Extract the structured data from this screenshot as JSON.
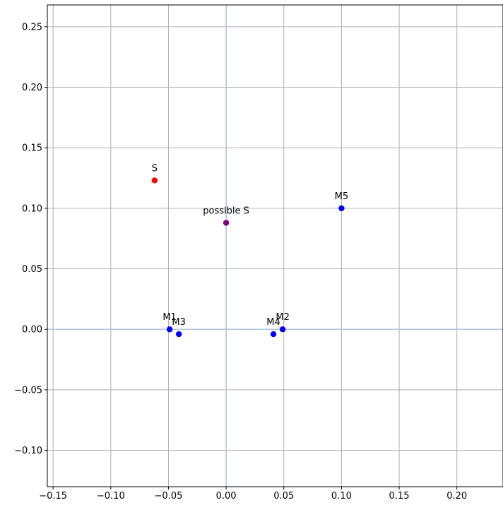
{
  "chart_data": {
    "type": "scatter",
    "title": "",
    "xlabel": "",
    "ylabel": "",
    "xlim": [
      -0.155,
      0.24
    ],
    "ylim": [
      -0.13,
      0.268
    ],
    "x_ticks": [
      -0.15,
      -0.1,
      -0.05,
      0.0,
      0.05,
      0.1,
      0.15,
      0.2
    ],
    "x_tick_labels": [
      "−0.15",
      "−0.10",
      "−0.05",
      "0.00",
      "0.05",
      "0.10",
      "0.15",
      "0.20"
    ],
    "y_ticks": [
      0.25,
      0.2,
      0.15,
      0.1,
      0.05,
      0.0,
      -0.05,
      -0.1
    ],
    "y_tick_labels": [
      "0.25",
      "0.20",
      "0.15",
      "0.10",
      "0.05",
      "0.00",
      "−0.05",
      "−0.10"
    ],
    "grid": true,
    "axis_lines_at_zero": true,
    "points": [
      {
        "label": "S",
        "x": -0.062,
        "y": 0.123,
        "color": "#ff0000"
      },
      {
        "label": "possible S",
        "x": 0.0,
        "y": 0.088,
        "color": "#800080"
      },
      {
        "label": "M5",
        "x": 0.1,
        "y": 0.1,
        "color": "#0000ff"
      },
      {
        "label": "M1",
        "x": -0.049,
        "y": 0.0,
        "color": "#0000ff"
      },
      {
        "label": "M3",
        "x": -0.041,
        "y": -0.004,
        "color": "#0000ff"
      },
      {
        "label": "M2",
        "x": 0.049,
        "y": 0.0,
        "color": "#0000ff"
      },
      {
        "label": "M4",
        "x": 0.041,
        "y": -0.004,
        "color": "#0000ff"
      }
    ],
    "colors": {
      "grid": "#b0b0b0",
      "zero_axes": "#b0c4de",
      "frame": "#000000"
    }
  }
}
